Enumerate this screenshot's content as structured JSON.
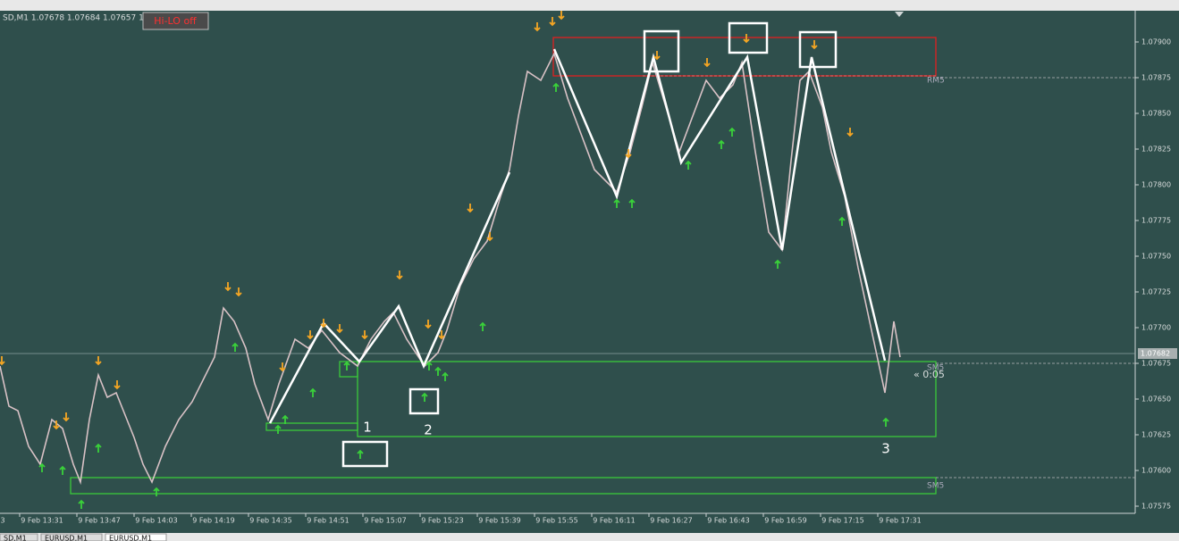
{
  "header": {
    "symbol_info": "SD,M1  1.07678 1.07684 1.07657 1.07",
    "button": "Hi-LO off"
  },
  "price_axis": [
    "1.07900",
    "1.07875",
    "1.07850",
    "1.07825",
    "1.07800",
    "1.07775",
    "1.07750",
    "1.07725",
    "1.07700",
    "1.07675",
    "1.07650",
    "1.07625",
    "1.07600",
    "1.07575"
  ],
  "current_price": "1.07682",
  "time_axis": [
    "3",
    "9 Feb 13:31",
    "9 Feb 13:47",
    "9 Feb 14:03",
    "9 Feb 14:19",
    "9 Feb 14:35",
    "9 Feb 14:51",
    "9 Feb 15:07",
    "9 Feb 15:23",
    "9 Feb 15:39",
    "9 Feb 15:55",
    "9 Feb 16:11",
    "9 Feb 16:27",
    "9 Feb 16:43",
    "9 Feb 16:59",
    "9 Feb 17:15",
    "9 Feb 17:31"
  ],
  "levels": {
    "resistance": "RM5",
    "support_upper": "SM5",
    "support_lower": "SM5",
    "timer": "« 0:05"
  },
  "annotations": [
    "1",
    "2",
    "3"
  ],
  "tabs": [
    "SD,M1",
    "EURUSD,M1",
    "EURUSD,M1"
  ]
}
